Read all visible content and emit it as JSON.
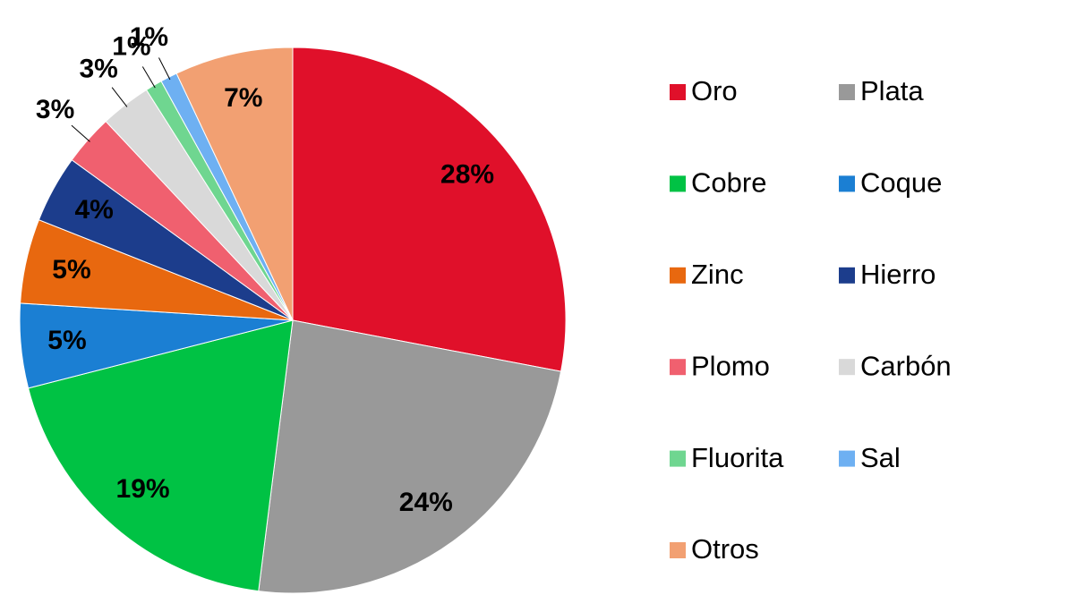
{
  "chart_data": {
    "type": "pie",
    "categories": [
      "Oro",
      "Plata",
      "Cobre",
      "Coque",
      "Zinc",
      "Hierro",
      "Plomo",
      "Carbón",
      "Fluorita",
      "Sal",
      "Otros"
    ],
    "values": [
      28,
      24,
      19,
      5,
      5,
      4,
      3,
      3,
      1,
      1,
      7
    ],
    "colors": [
      "#e0102a",
      "#999999",
      "#00c244",
      "#1b7fd3",
      "#e8680f",
      "#1c3d8c",
      "#f0606f",
      "#d9d9d9",
      "#6fd690",
      "#6eb0f2",
      "#f2a072"
    ],
    "legend": "right"
  }
}
